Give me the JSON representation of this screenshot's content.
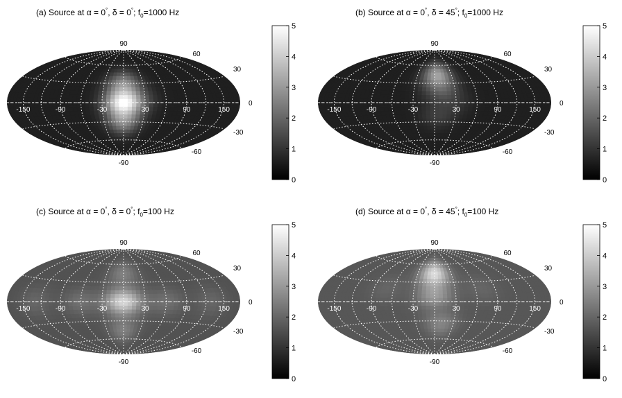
{
  "chart_data": [
    {
      "type": "heatmap",
      "title": {
        "prefix": "(a) Source at",
        "alpha": "α = 0",
        "deg": "°",
        "delta": ", δ = 0",
        "deg2": "°",
        "f": "; f",
        "sub": "0",
        "freq": "=1000 Hz"
      },
      "projection": "hammer-aitoff",
      "grid": true,
      "longitude_labels": [
        "-150",
        "-90",
        "-30",
        "30",
        "90",
        "150"
      ],
      "latitude_labels": [
        "90",
        "60",
        "30",
        "0",
        "-30",
        "-60",
        "-90"
      ],
      "colorbar": {
        "range": [
          0,
          5
        ],
        "ticks": [
          "0",
          "1",
          "2",
          "3",
          "4",
          "5"
        ],
        "colormap": "gray"
      },
      "peaks": [
        {
          "lon": 0,
          "lat": 0,
          "value": 4.6
        },
        {
          "lon": 0,
          "lat": 30,
          "value": 2.6
        },
        {
          "lon": 0,
          "lat": -30,
          "value": 2.6
        },
        {
          "lon": 25,
          "lat": 5,
          "value": 1.0
        }
      ],
      "background": 0.6
    },
    {
      "type": "heatmap",
      "title": {
        "prefix": "(b) Source at",
        "alpha": "α = 0",
        "deg": "°",
        "delta": ", δ = 45",
        "deg2": "°",
        "f": "; f",
        "sub": "0",
        "freq": "=1000 Hz"
      },
      "projection": "hammer-aitoff",
      "grid": true,
      "longitude_labels": [
        "-150",
        "-90",
        "-30",
        "30",
        "90",
        "150"
      ],
      "latitude_labels": [
        "90",
        "60",
        "30",
        "0",
        "-30",
        "-60",
        "-90"
      ],
      "colorbar": {
        "range": [
          0,
          5
        ],
        "ticks": [
          "0",
          "1",
          "2",
          "3",
          "4",
          "5"
        ],
        "colormap": "gray"
      },
      "peaks": [
        {
          "lon": 5,
          "lat": 45,
          "value": 3.0
        },
        {
          "lon": 10,
          "lat": 20,
          "value": 1.6
        },
        {
          "lon": 5,
          "lat": -20,
          "value": 1.2
        },
        {
          "lon": 30,
          "lat": 0,
          "value": 0.9
        }
      ],
      "background": 0.6
    },
    {
      "type": "heatmap",
      "title": {
        "prefix": "(c) Source at",
        "alpha": "α = 0",
        "deg": "°",
        "delta": ", δ = 0",
        "deg2": "°",
        "f": "; f",
        "sub": "0",
        "freq": "=100 Hz"
      },
      "projection": "hammer-aitoff",
      "grid": true,
      "longitude_labels": [
        "-150",
        "-90",
        "-30",
        "30",
        "90",
        "150"
      ],
      "latitude_labels": [
        "90",
        "60",
        "30",
        "0",
        "-30",
        "-60",
        "-90"
      ],
      "colorbar": {
        "range": [
          0,
          5
        ],
        "ticks": [
          "0",
          "1",
          "2",
          "3",
          "4",
          "5"
        ],
        "colormap": "gray"
      },
      "peaks": [
        {
          "lon": 0,
          "lat": 0,
          "value": 4.2
        },
        {
          "lon": 0,
          "lat": 45,
          "value": 2.5
        },
        {
          "lon": 0,
          "lat": -45,
          "value": 2.5
        },
        {
          "lon": 60,
          "lat": 0,
          "value": 2.2
        },
        {
          "lon": -60,
          "lat": 0,
          "value": 2.2
        },
        {
          "lon": 130,
          "lat": 0,
          "value": 2.0
        },
        {
          "lon": -130,
          "lat": 0,
          "value": 2.0
        }
      ],
      "background": 1.6
    },
    {
      "type": "heatmap",
      "title": {
        "prefix": "(d) Source at",
        "alpha": "α = 0",
        "deg": "°",
        "delta": ", δ = 45",
        "deg2": "°",
        "f": "; f",
        "sub": "0",
        "freq": "=100 Hz"
      },
      "projection": "hammer-aitoff",
      "grid": true,
      "longitude_labels": [
        "-150",
        "-90",
        "-30",
        "30",
        "90",
        "150"
      ],
      "latitude_labels": [
        "90",
        "60",
        "30",
        "0",
        "-30",
        "-60",
        "-90"
      ],
      "colorbar": {
        "range": [
          0,
          5
        ],
        "ticks": [
          "0",
          "1",
          "2",
          "3",
          "4",
          "5"
        ],
        "colormap": "gray"
      },
      "peaks": [
        {
          "lon": 0,
          "lat": 45,
          "value": 4.3
        },
        {
          "lon": 0,
          "lat": 10,
          "value": 3.0
        },
        {
          "lon": 10,
          "lat": -35,
          "value": 2.6
        },
        {
          "lon": 70,
          "lat": 20,
          "value": 2.0
        },
        {
          "lon": -70,
          "lat": 20,
          "value": 2.0
        }
      ],
      "background": 1.7
    }
  ]
}
